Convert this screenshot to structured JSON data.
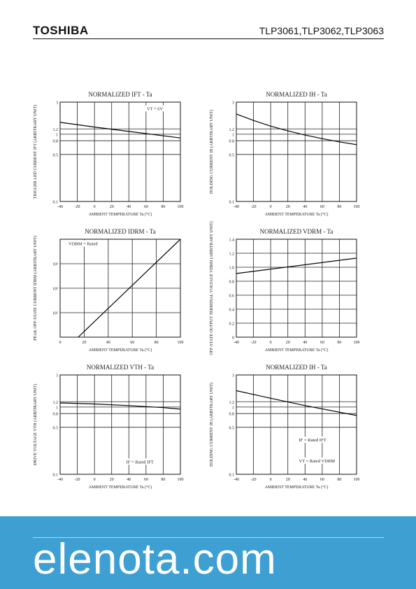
{
  "header": {
    "brand": "TOSHIBA",
    "part_numbers": "TLP3061,TLP3062,TLP3063"
  },
  "footer": {
    "brand": "elenota.com",
    "band_color": "#3d9fd2"
  },
  "chart_data": [
    {
      "type": "line",
      "scale": "log",
      "title": "NORMALIZED IFT - Ta",
      "ylabel": "TRIGGER LED CURRENT IFT (ARBITRARY UNIT)",
      "xlabel": "AMBIENT TEMPERATURE Ta (°C)",
      "xlim": [
        -40,
        100
      ],
      "ylim": [
        0.1,
        3
      ],
      "xticks": [
        "-40",
        "-20",
        "0",
        "20",
        "40",
        "60",
        "80",
        "100"
      ],
      "yticks": [
        {
          "v": 3,
          "t": "3"
        },
        {
          "v": 1.2,
          "t": "1.2"
        },
        {
          "v": 1,
          "t": "1"
        },
        {
          "v": 0.8,
          "t": "0.8"
        },
        {
          "v": 0.5,
          "t": "0.5"
        },
        {
          "v": 0.1,
          "t": "0.1"
        }
      ],
      "annotations": [
        "VT = 6V"
      ],
      "series": [
        {
          "x": [
            -40,
            0,
            40,
            100
          ],
          "y": [
            1.5,
            1.28,
            1.1,
            0.88
          ]
        }
      ]
    },
    {
      "type": "line",
      "scale": "log",
      "title": "NORMALIZED IH - Ta",
      "ylabel": "HOLDING CURRENT IH (ARBITRARY UNIT)",
      "xlabel": "AMBIENT TEMPERATURE Ta (°C)",
      "xlim": [
        -40,
        100
      ],
      "ylim": [
        0.1,
        3
      ],
      "xticks": [
        "-40",
        "-20",
        "0",
        "20",
        "40",
        "60",
        "80",
        "100"
      ],
      "yticks": [
        {
          "v": 3,
          "t": "3"
        },
        {
          "v": 1.2,
          "t": "1.2"
        },
        {
          "v": 1,
          "t": "1"
        },
        {
          "v": 0.8,
          "t": "0.8"
        },
        {
          "v": 0.5,
          "t": "0.5"
        },
        {
          "v": 0.1,
          "t": "0.1"
        }
      ],
      "annotations": [],
      "series": [
        {
          "x": [
            -40,
            -20,
            0,
            20,
            40,
            60,
            80,
            100
          ],
          "y": [
            2.0,
            1.6,
            1.32,
            1.12,
            0.97,
            0.86,
            0.77,
            0.7
          ]
        }
      ]
    },
    {
      "type": "line",
      "scale": "log",
      "title": "NORMALIZED IDRM - Ta",
      "ylabel": "PEAK OFF-STATE CURRENT IDRM (ARBITRARY UNIT)",
      "xlabel": "AMBIENT TEMPERATURE Ta (°C)",
      "xlim": [
        0,
        100
      ],
      "ylim": [
        1,
        10000
      ],
      "xticks": [
        "0",
        "20",
        "40",
        "60",
        "80",
        "100"
      ],
      "yticks": [
        {
          "v": 1000,
          "t": "10³"
        },
        {
          "v": 100,
          "t": "10²"
        },
        {
          "v": 10,
          "t": "10¹"
        }
      ],
      "annotations": [
        "VDRM = Rated"
      ],
      "series": [
        {
          "x": [
            15,
            100
          ],
          "y": [
            1,
            10000
          ]
        }
      ]
    },
    {
      "type": "line",
      "scale": "linear",
      "title": "NORMALIZED VDRM - Ta",
      "ylabel": "OFF-STATE OUTPUT TERMINAL VOLTAGE VDRM (ARBITRARY UNIT)",
      "xlabel": "AMBIENT TEMPERATURE Ta (°C)",
      "xlim": [
        -40,
        100
      ],
      "ylim": [
        0,
        1.4
      ],
      "xticks": [
        "-40",
        "-20",
        "0",
        "20",
        "40",
        "60",
        "80",
        "100"
      ],
      "yticks": [
        {
          "v": 1.4,
          "t": "1.4"
        },
        {
          "v": 1.2,
          "t": "1.2"
        },
        {
          "v": 1.0,
          "t": "1.0"
        },
        {
          "v": 0.8,
          "t": "0.8"
        },
        {
          "v": 0.6,
          "t": "0.6"
        },
        {
          "v": 0.4,
          "t": "0.4"
        },
        {
          "v": 0.2,
          "t": "0.2"
        },
        {
          "v": 0,
          "t": "0"
        }
      ],
      "annotations": [],
      "series": [
        {
          "x": [
            -40,
            100
          ],
          "y": [
            0.91,
            1.13
          ]
        }
      ]
    },
    {
      "type": "line",
      "scale": "log",
      "title": "NORMALIZED VTH - Ta",
      "ylabel": "DRIVE VOLTAGE VTH (ARBITRARY UNIT)",
      "xlabel": "AMBIENT TEMPERATURE Ta (°C)",
      "xlim": [
        -40,
        100
      ],
      "ylim": [
        0.1,
        3
      ],
      "xticks": [
        "-40",
        "-20",
        "0",
        "20",
        "40",
        "60",
        "80",
        "100"
      ],
      "yticks": [
        {
          "v": 3,
          "t": "3"
        },
        {
          "v": 1.2,
          "t": "1.2"
        },
        {
          "v": 1,
          "t": "1"
        },
        {
          "v": 0.8,
          "t": "0.8"
        },
        {
          "v": 0.5,
          "t": "0.5"
        },
        {
          "v": 0.1,
          "t": "0.1"
        }
      ],
      "annotations": [
        "IF = Rated IFT"
      ],
      "series": [
        {
          "x": [
            -40,
            0,
            40,
            80,
            100
          ],
          "y": [
            1.15,
            1.11,
            1.05,
            0.98,
            0.93
          ]
        }
      ]
    },
    {
      "type": "line",
      "scale": "log",
      "title": "NORMALIZED IH - Ta",
      "ylabel": "HOLDING CURRENT IH (ARBITRARY UNIT)",
      "xlabel": "AMBIENT TEMPERATURE Ta (°C)",
      "xlim": [
        -40,
        100
      ],
      "ylim": [
        0.1,
        3
      ],
      "xticks": [
        "-40",
        "-20",
        "0",
        "20",
        "40",
        "60",
        "80",
        "100"
      ],
      "yticks": [
        {
          "v": 3,
          "t": "3"
        },
        {
          "v": 1.2,
          "t": "1.2"
        },
        {
          "v": 1,
          "t": "1"
        },
        {
          "v": 0.8,
          "t": "0.8"
        },
        {
          "v": 0.5,
          "t": "0.5"
        },
        {
          "v": 0.1,
          "t": "0.1"
        }
      ],
      "annotations": [
        "IF = Rated IFT",
        "VT = Rated VDRM"
      ],
      "series": [
        {
          "x": [
            -40,
            0,
            40,
            100
          ],
          "y": [
            1.75,
            1.35,
            1.05,
            0.75
          ]
        }
      ]
    }
  ]
}
